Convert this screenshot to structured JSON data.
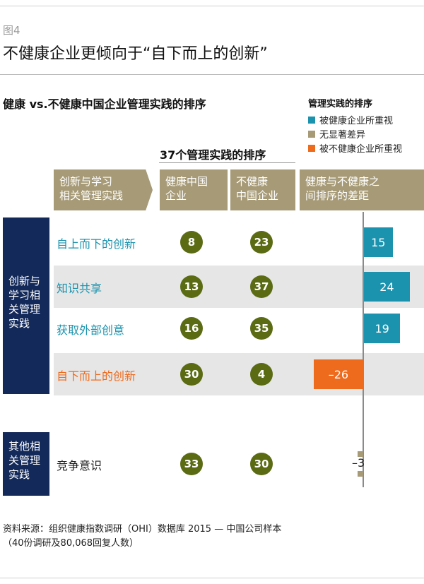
{
  "figure_no": "图4",
  "title": "不健康企业更倾向于“自下而上的创新”",
  "subtitle": "健康 vs.不健康中国企业管理实践的排序",
  "legend": {
    "title": "管理实践的排序",
    "items": [
      {
        "label": "被健康企业所重视",
        "color": "#1b93ae"
      },
      {
        "label": "无显著差异",
        "color": "#a69a77"
      },
      {
        "label": "被不健康企业所重视",
        "color": "#ee6a1c"
      }
    ]
  },
  "rank_header": "37个管理实践的排序",
  "columns": {
    "category": "创新与学习\n相关管理实践",
    "healthy": "健康中国\n企业",
    "unhealthy": "不健康\n中国企业",
    "gap": "健康与不健康之\n间排序的差距"
  },
  "groups": [
    {
      "label": "创新与\n学习相\n关管理\n实践"
    },
    {
      "label": "其他相\n关管理\n实践"
    }
  ],
  "chart_data": {
    "type": "bar",
    "categories": [
      "自上而下的创新",
      "知识共享",
      "获取外部创意",
      "自下而上的创新",
      "竞争意识"
    ],
    "healthy_rank": [
      8,
      13,
      16,
      30,
      33
    ],
    "unhealthy_rank": [
      23,
      37,
      35,
      4,
      30
    ],
    "values": [
      15,
      24,
      19,
      -26,
      -3
    ],
    "value_labels": [
      "15",
      "24",
      "19",
      "–26",
      "–3"
    ],
    "category_colors": [
      "#1b93ae",
      "#1b93ae",
      "#1b93ae",
      "#ee6a1c",
      "#222222"
    ],
    "bar_colors": [
      "#1b93ae",
      "#1b93ae",
      "#1b93ae",
      "#ee6a1c",
      "#a69a77"
    ]
  },
  "source": {
    "line1": "资料来源：组织健康指数调研（OHI）数据库 2015 — 中国公司样本",
    "line2": "（40份调研及80,068回复人数）"
  }
}
